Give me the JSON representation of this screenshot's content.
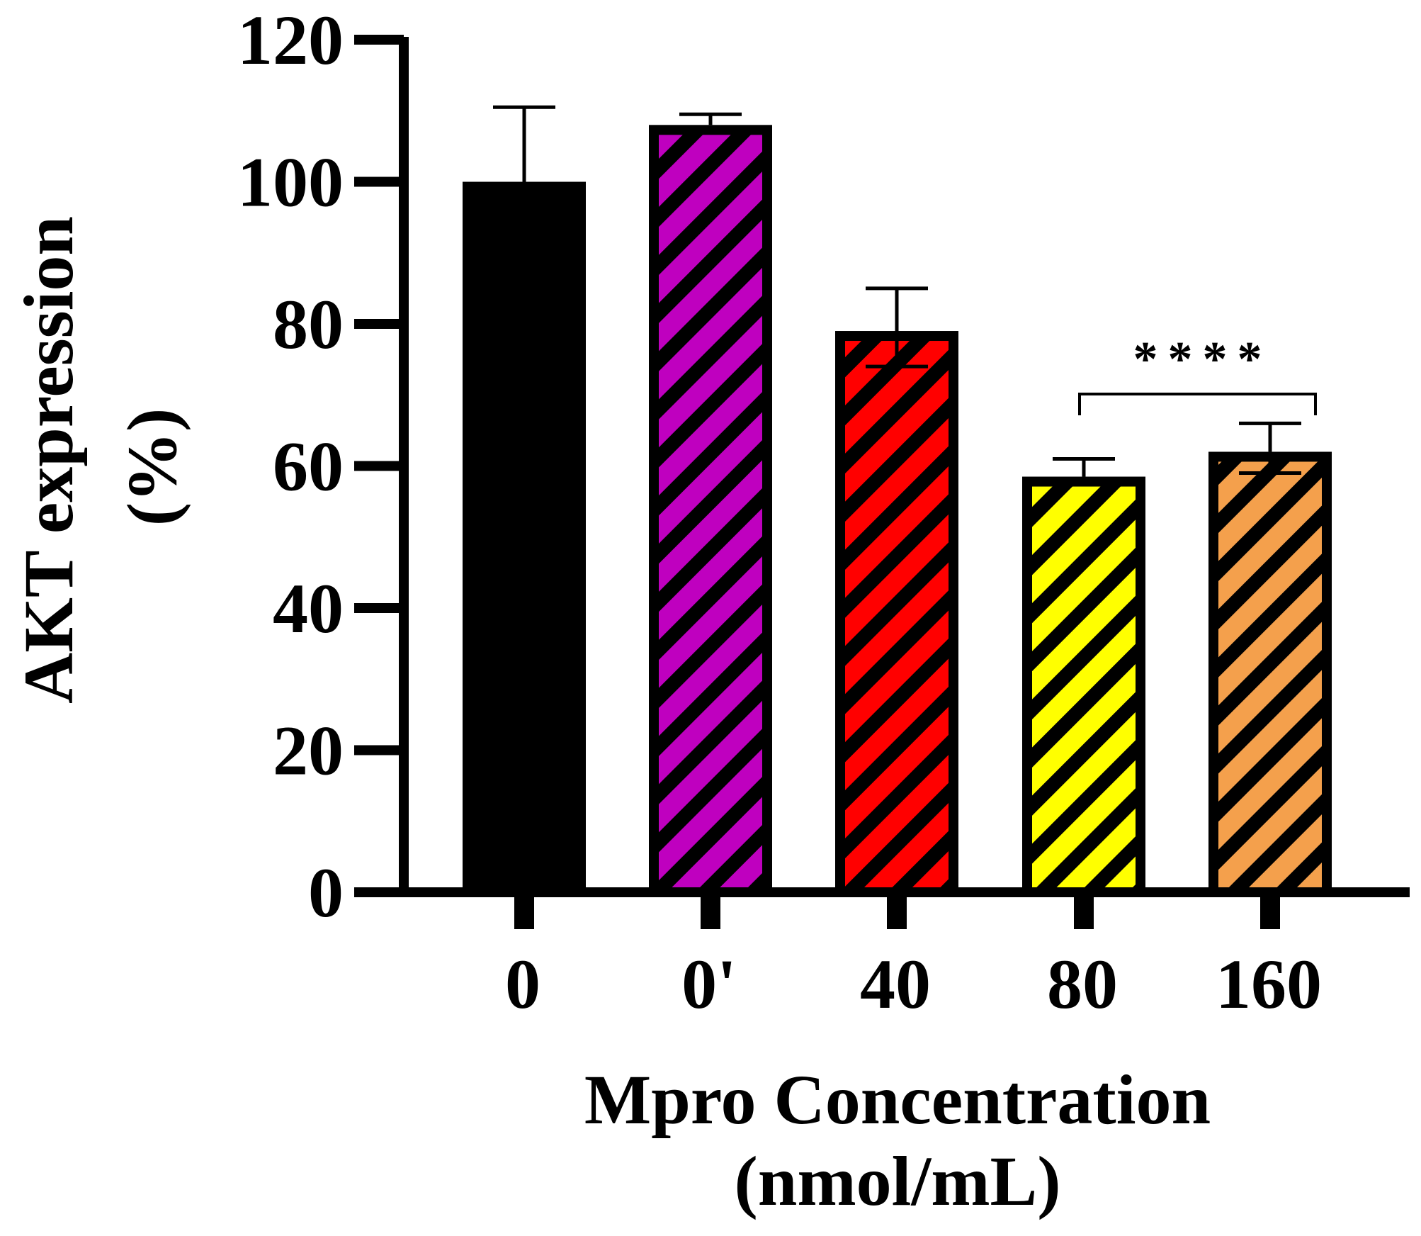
{
  "chart_data": {
    "type": "bar",
    "title": "",
    "ylabel_lines": [
      "AKT expression",
      "(%)"
    ],
    "xlabel_lines": [
      "Mpro Concentration",
      "(nmol/mL)"
    ],
    "ylim": [
      0,
      120
    ],
    "yticks": [
      0,
      20,
      40,
      60,
      80,
      100,
      120
    ],
    "ytick_labels": [
      "0",
      "20",
      "40",
      "60",
      "80",
      "100",
      "120"
    ],
    "categories": [
      "0",
      "0'",
      "40",
      "80",
      "160"
    ],
    "values": [
      100,
      108,
      79,
      58.5,
      62
    ],
    "error_upper": [
      110.5,
      109.5,
      85,
      61,
      66
    ],
    "error_lower": [
      null,
      null,
      74,
      null,
      59
    ],
    "fill_colors": [
      "#000000",
      "#bf00bf",
      "#ff0000",
      "#ffff00",
      "#f4a04c"
    ],
    "hatched": [
      false,
      true,
      true,
      true,
      true
    ],
    "significance": {
      "from_category": "80",
      "to_category": "160",
      "label": "****"
    }
  }
}
